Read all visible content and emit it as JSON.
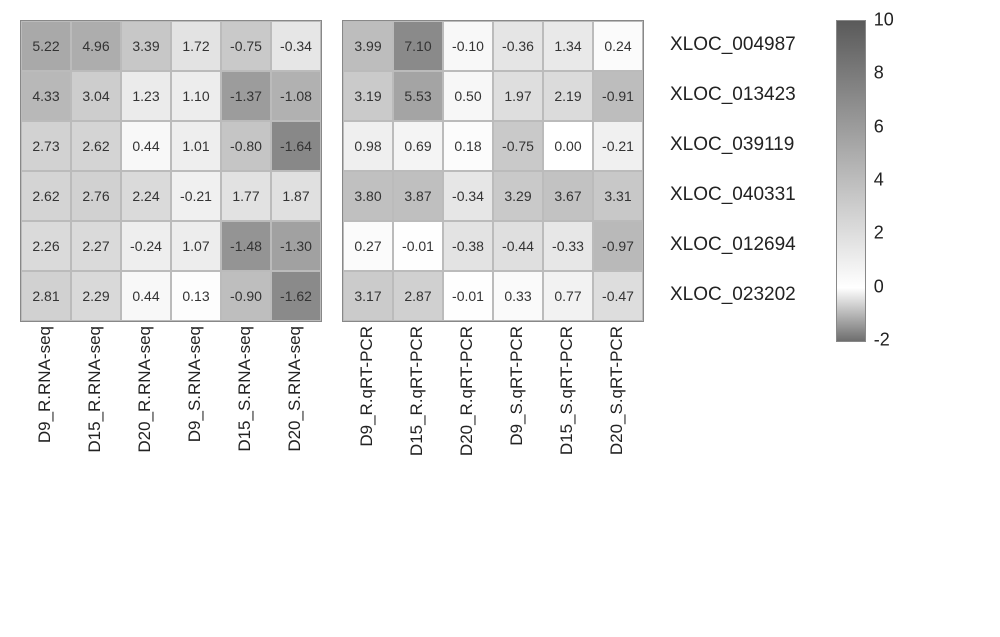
{
  "scale": {
    "min": -2,
    "max": 10
  },
  "color_low": "#6e6e6e",
  "color_zero": "#ffffff",
  "color_high": "#5a5a5a",
  "row_labels": [
    "XLOC_004987",
    "XLOC_013423",
    "XLOC_039119",
    "XLOC_040331",
    "XLOC_012694",
    "XLOC_023202"
  ],
  "panels": [
    {
      "columns": [
        "D9_R.RNA-seq",
        "D15_R.RNA-seq",
        "D20_R.RNA-seq",
        "D9_S.RNA-seq",
        "D15_S.RNA-seq",
        "D20_S.RNA-seq"
      ],
      "data": [
        [
          5.22,
          4.96,
          3.39,
          1.72,
          -0.75,
          -0.34
        ],
        [
          4.33,
          3.04,
          1.23,
          1.1,
          -1.37,
          -1.08
        ],
        [
          2.73,
          2.62,
          0.44,
          1.01,
          -0.8,
          -1.64
        ],
        [
          2.62,
          2.76,
          2.24,
          -0.21,
          1.77,
          1.87
        ],
        [
          2.26,
          2.27,
          -0.24,
          1.07,
          -1.48,
          -1.3
        ],
        [
          2.81,
          2.29,
          0.44,
          0.13,
          -0.9,
          -1.62
        ]
      ]
    },
    {
      "columns": [
        "D9_R.qRT-PCR",
        "D15_R.qRT-PCR",
        "D20_R.qRT-PCR",
        "D9_S.qRT-PCR",
        "D15_S.qRT-PCR",
        "D20_S.qRT-PCR"
      ],
      "data": [
        [
          3.99,
          7.1,
          -0.1,
          -0.36,
          1.34,
          0.24
        ],
        [
          3.19,
          5.53,
          0.5,
          1.97,
          2.19,
          -0.91
        ],
        [
          0.98,
          0.69,
          0.18,
          -0.75,
          0.0,
          -0.21
        ],
        [
          3.8,
          3.87,
          -0.34,
          3.29,
          3.67,
          3.31
        ],
        [
          0.27,
          -0.01,
          -0.38,
          -0.44,
          -0.33,
          -0.97
        ],
        [
          3.17,
          2.87,
          -0.01,
          0.33,
          0.77,
          -0.47
        ]
      ]
    }
  ],
  "colorbar_ticks": [
    10,
    8,
    6,
    4,
    2,
    0,
    -2
  ],
  "cell_border_color": "#bbbbbb",
  "text_color": "#333333",
  "font_size_cell": 14,
  "font_size_label": 17,
  "font_size_rowlabel": 19,
  "font_size_tick": 18
}
